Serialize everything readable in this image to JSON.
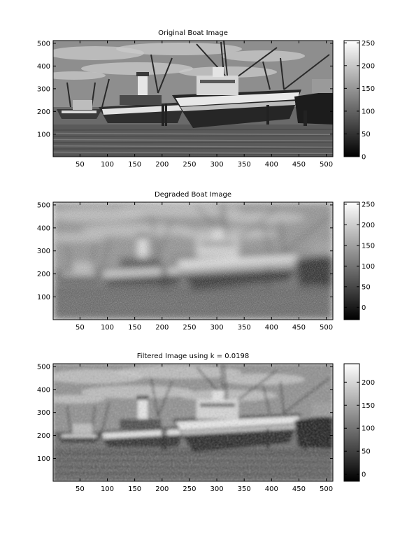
{
  "chart_data": [
    {
      "type": "heatmap",
      "title": "Original Boat Image",
      "xlabel": "",
      "ylabel": "",
      "xlim": [
        1,
        512
      ],
      "ylim": [
        512,
        1
      ],
      "xticks": [
        50,
        100,
        150,
        200,
        250,
        300,
        350,
        400,
        450,
        500
      ],
      "yticks": [
        100,
        200,
        300,
        400,
        500
      ],
      "colormap": "gray",
      "colorbar": {
        "range": [
          0,
          255
        ],
        "ticks": [
          0,
          50,
          100,
          150,
          200,
          250
        ]
      },
      "degradation": "none"
    },
    {
      "type": "heatmap",
      "title": "Degraded Boat Image",
      "xlabel": "",
      "ylabel": "",
      "xlim": [
        1,
        512
      ],
      "ylim": [
        512,
        1
      ],
      "xticks": [
        50,
        100,
        150,
        200,
        250,
        300,
        350,
        400,
        450,
        500
      ],
      "yticks": [
        100,
        200,
        300,
        400,
        500
      ],
      "colormap": "gray",
      "colorbar": {
        "range": [
          -30,
          255
        ],
        "ticks": [
          0,
          50,
          100,
          150,
          200,
          250
        ]
      },
      "degradation": "blur+noise"
    },
    {
      "type": "heatmap",
      "title": "Filtered Image using k = 0.0198",
      "xlabel": "",
      "ylabel": "",
      "xlim": [
        1,
        512
      ],
      "ylim": [
        512,
        1
      ],
      "xticks": [
        50,
        100,
        150,
        200,
        250,
        300,
        350,
        400,
        450,
        500
      ],
      "yticks": [
        100,
        200,
        300,
        400,
        500
      ],
      "colormap": "gray",
      "colorbar": {
        "range": [
          -15,
          240
        ],
        "ticks": [
          0,
          50,
          100,
          150,
          200
        ]
      },
      "degradation": "restored"
    }
  ]
}
